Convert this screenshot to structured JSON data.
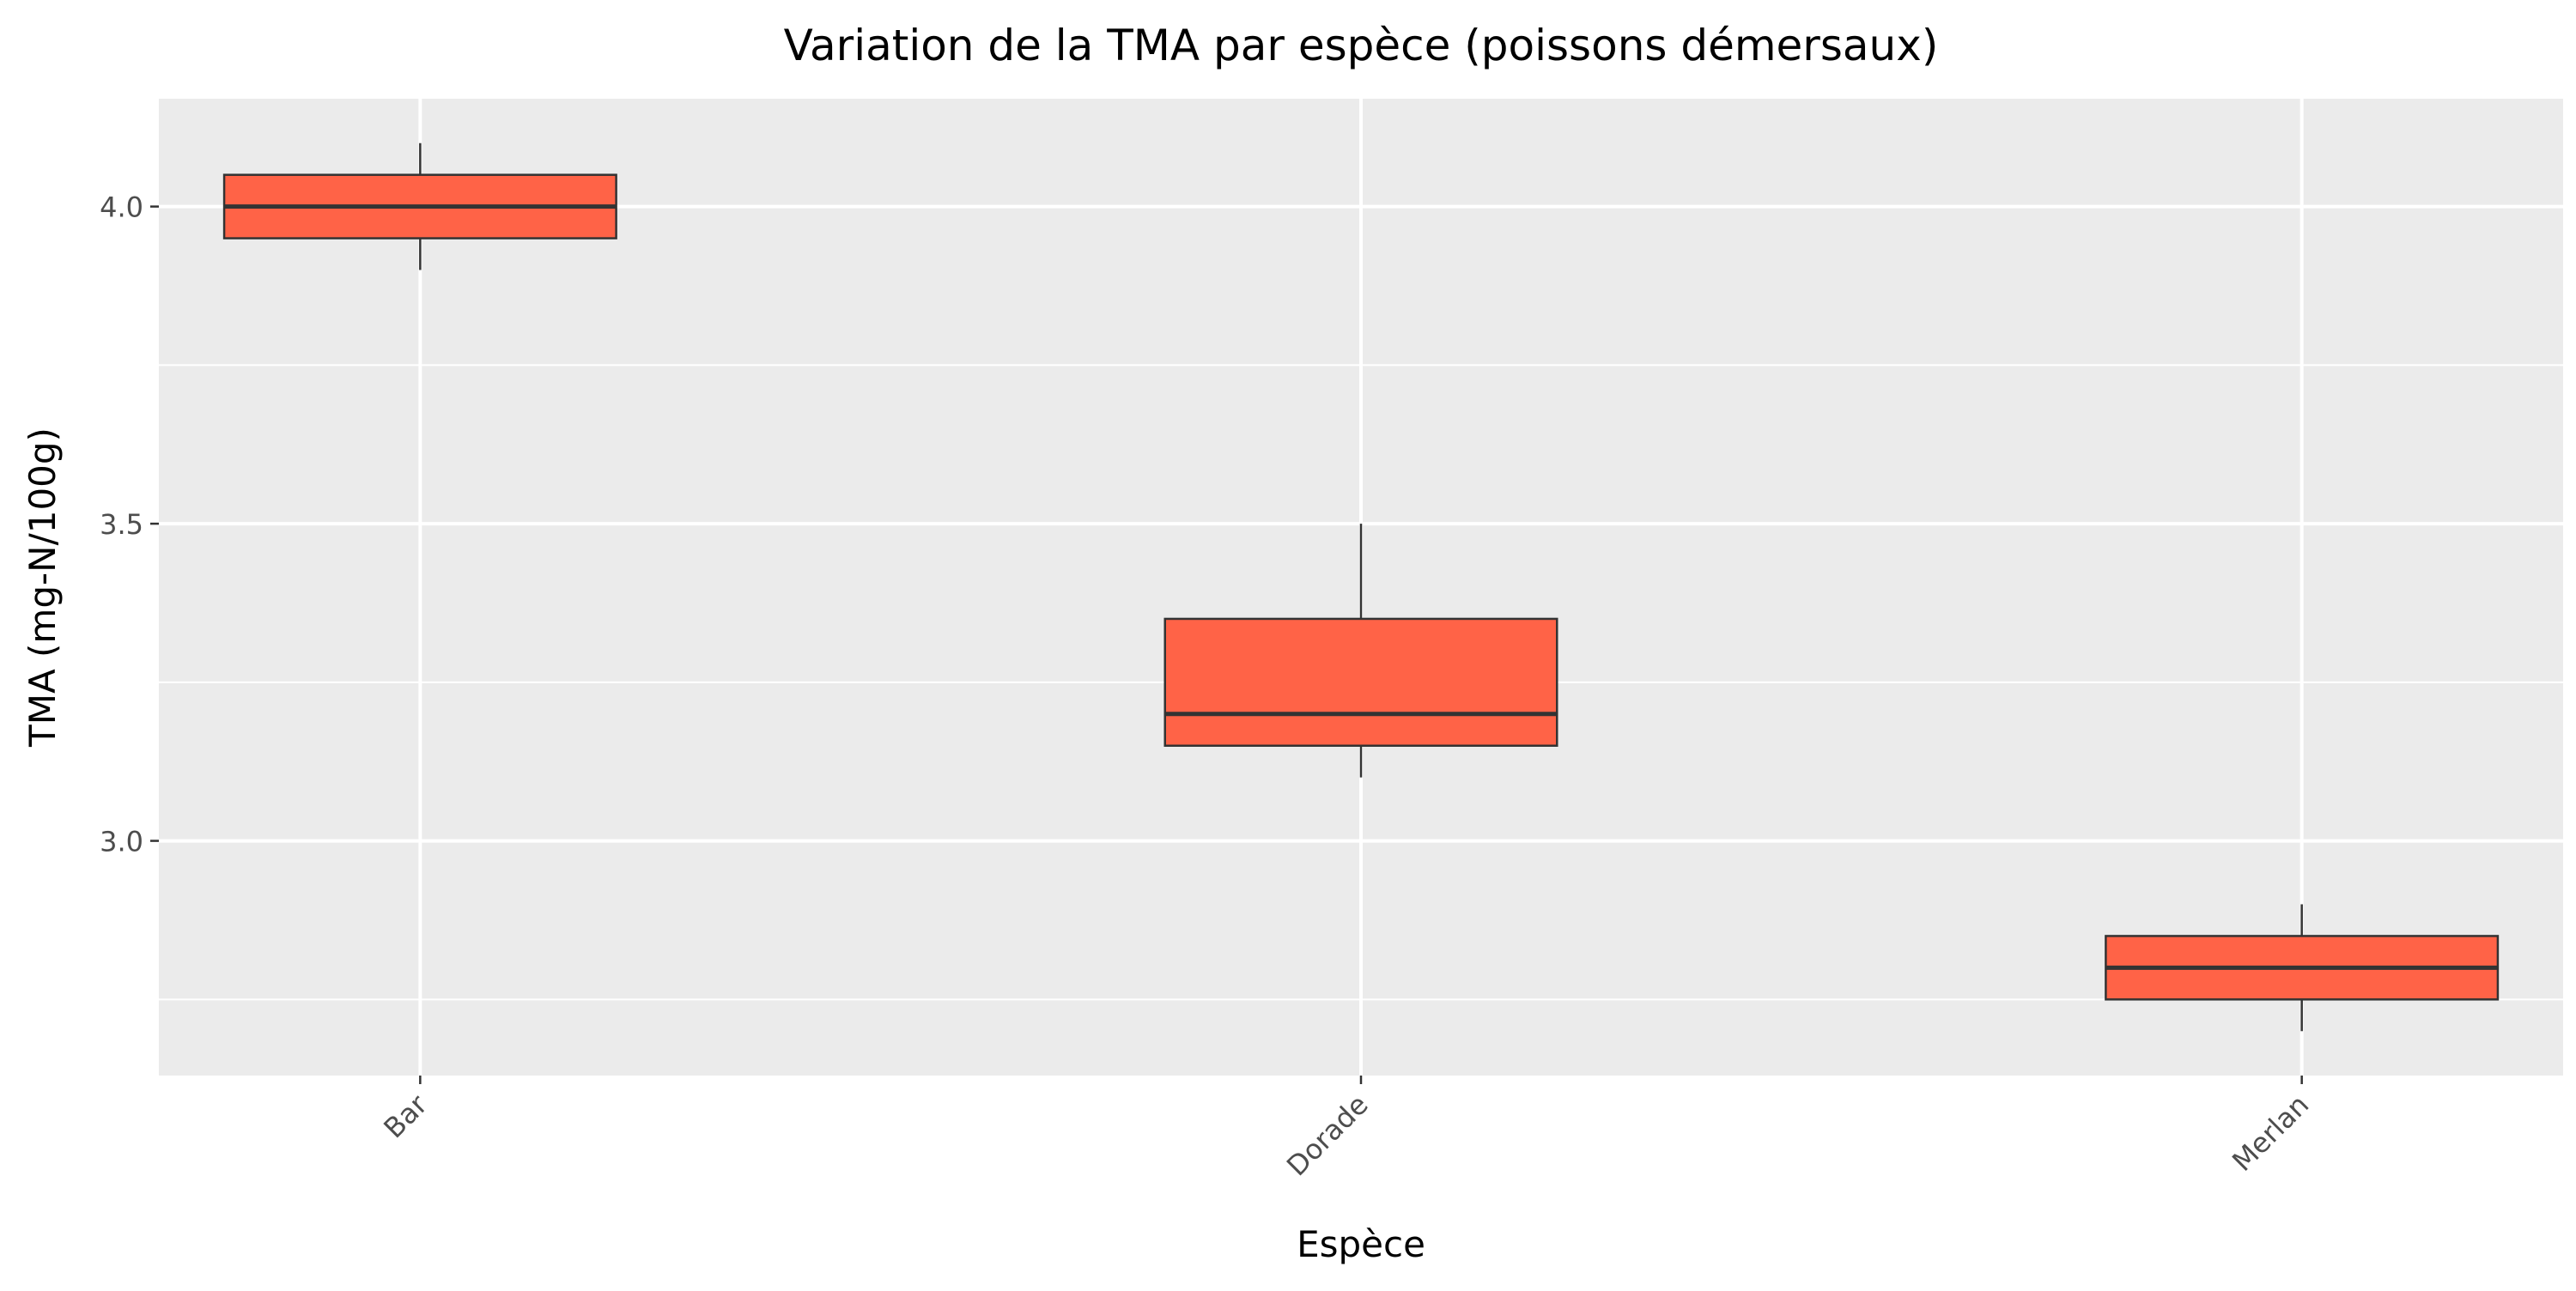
{
  "chart_data": {
    "type": "box",
    "title": "Variation de la TMA par espèce (poissons démersaux)",
    "xlabel": "Espèce",
    "ylabel": "TMA (mg-N/100g)",
    "categories": [
      "Bar",
      "Dorade",
      "Merlan"
    ],
    "series": [
      {
        "boxes": [
          {
            "category": "Bar",
            "whisker_low": 3.9,
            "q1": 3.95,
            "median": 4.0,
            "q3": 4.05,
            "whisker_high": 4.1
          },
          {
            "category": "Dorade",
            "whisker_low": 3.1,
            "q1": 3.15,
            "median": 3.2,
            "q3": 3.35,
            "whisker_high": 3.5
          },
          {
            "category": "Merlan",
            "whisker_low": 2.7,
            "q1": 2.75,
            "median": 2.8,
            "q3": 2.85,
            "whisker_high": 2.9
          }
        ]
      }
    ],
    "ylim": [
      2.63,
      4.17
    ],
    "y_ticks": [
      3.0,
      3.5,
      4.0
    ],
    "y_tick_labels": [
      "3.0",
      "3.5",
      "4.0"
    ],
    "y_minor_ticks": [
      2.75,
      3.25,
      3.75
    ],
    "grid": true,
    "legend": "none",
    "colors": {
      "box_fill": "#FF6347",
      "box_stroke": "#333333",
      "panel_background": "#EBEBEB",
      "grid": "#FFFFFF",
      "text": "#000000",
      "tick_text": "#4D4D4D"
    }
  }
}
